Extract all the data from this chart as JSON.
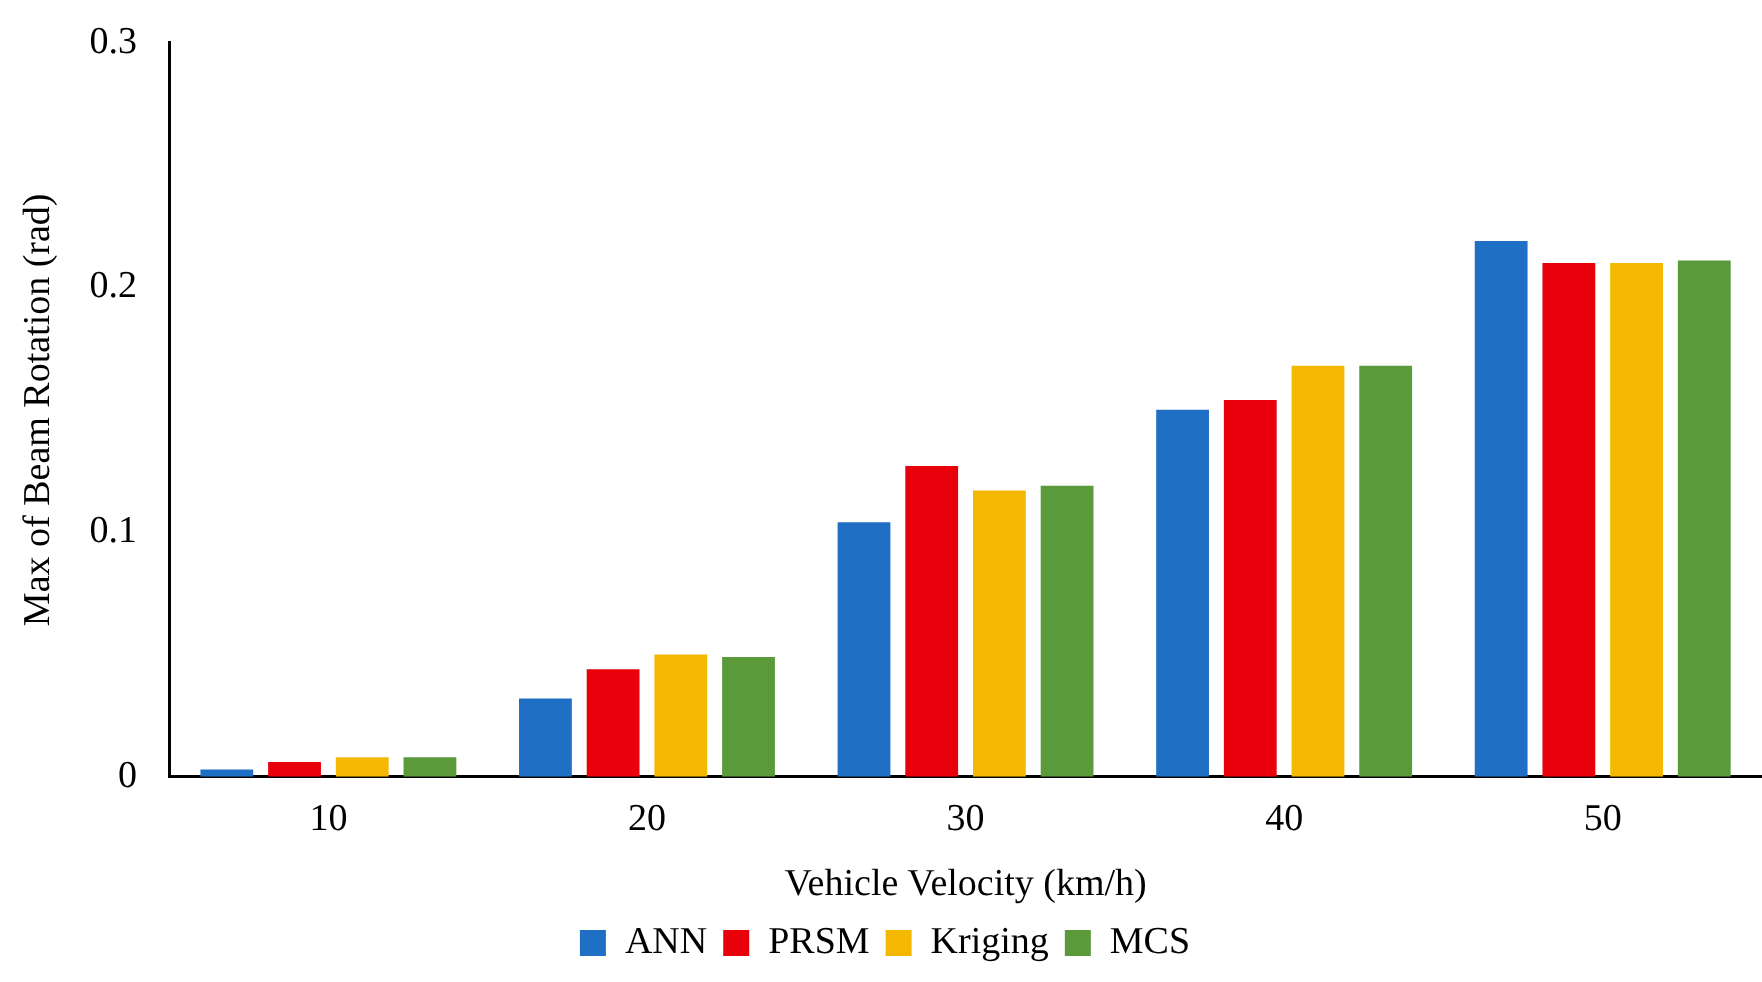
{
  "chart_data": {
    "type": "bar",
    "xlabel": "Vehicle Velocity (km/h)",
    "ylabel": "Max of Beam Rotation (rad)",
    "categories": [
      "10",
      "20",
      "30",
      "40",
      "50"
    ],
    "series": [
      {
        "name": "ANN",
        "color": "#1f6fc5",
        "values": [
          0.003,
          0.032,
          0.104,
          0.15,
          0.219
        ]
      },
      {
        "name": "PRSM",
        "color": "#e8000b",
        "values": [
          0.006,
          0.044,
          0.127,
          0.154,
          0.21
        ]
      },
      {
        "name": "Kriging",
        "color": "#f5b800",
        "values": [
          0.008,
          0.05,
          0.117,
          0.168,
          0.21
        ]
      },
      {
        "name": "MCS",
        "color": "#5a9a3a",
        "values": [
          0.008,
          0.049,
          0.119,
          0.168,
          0.211
        ]
      }
    ],
    "ylim": [
      0,
      0.3
    ],
    "yticks": [
      0,
      0.1,
      0.2,
      0.3
    ],
    "grid": false,
    "legend": "bottom"
  }
}
